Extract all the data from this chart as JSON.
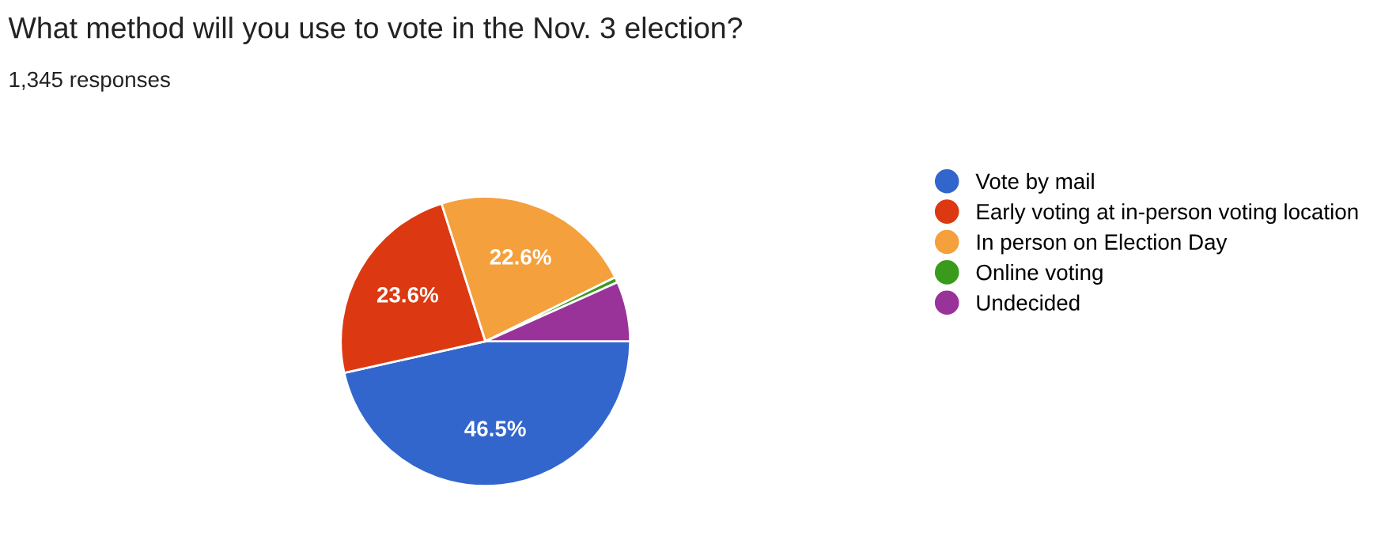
{
  "chart_data": {
    "type": "pie",
    "title": "What method will you use to vote in the Nov. 3 election?",
    "subtitle": "1,345 responses",
    "categories": [
      "Vote by mail",
      "Early voting at in-person voting location",
      "In person on Election Day",
      "Online voting",
      "Undecided"
    ],
    "values": [
      46.5,
      23.6,
      22.6,
      0.6,
      6.7
    ],
    "colors": [
      "#3366cc",
      "#dc3912",
      "#f4a03d",
      "#3a9a1c",
      "#993399"
    ],
    "value_labels": [
      "46.5%",
      "23.6%",
      "22.6%",
      null,
      null
    ],
    "legend": "right"
  }
}
